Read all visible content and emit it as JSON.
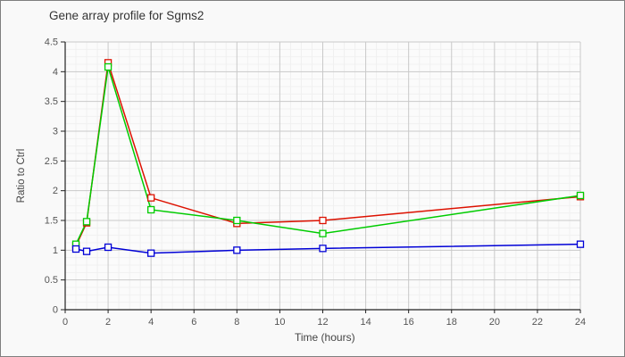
{
  "chart_data": {
    "type": "line",
    "title": "Gene array profile for Sgms2",
    "xlabel": "Time (hours)",
    "ylabel": "Ratio to Ctrl",
    "x": [
      0.5,
      1,
      2,
      4,
      8,
      12,
      24
    ],
    "xlim": [
      0,
      24
    ],
    "ylim": [
      0,
      4.5
    ],
    "x_ticks": [
      0,
      2,
      4,
      6,
      8,
      10,
      12,
      14,
      16,
      18,
      20,
      22,
      24
    ],
    "y_ticks": [
      0,
      0.5,
      1,
      1.5,
      2,
      2.5,
      3,
      3.5,
      4,
      4.5
    ],
    "legend": "none",
    "marker": "open-square",
    "grid": {
      "major_color": "#c9c9c9",
      "minor_color": "#f0f0f0",
      "major_x_step": 2,
      "minor_x_step": 0.5,
      "major_y_step": 0.5,
      "minor_y_step": 0.125
    },
    "series": [
      {
        "name": "red",
        "color": "#dd1100",
        "values": [
          1.07,
          1.46,
          4.15,
          1.88,
          1.45,
          1.5,
          1.9
        ]
      },
      {
        "name": "green",
        "color": "#00cc00",
        "values": [
          1.1,
          1.48,
          4.08,
          1.68,
          1.5,
          1.28,
          1.92
        ]
      },
      {
        "name": "blue",
        "color": "#0000d6",
        "values": [
          1.02,
          0.98,
          1.05,
          0.95,
          1.0,
          1.03,
          1.1
        ]
      }
    ]
  },
  "colors": {
    "background": "#f9f9f9",
    "plot_background": "#fbfbfb",
    "axis": "#222222",
    "tick_label": "#555555",
    "title_text": "#333333",
    "frame_border": "#7f7f7f"
  }
}
